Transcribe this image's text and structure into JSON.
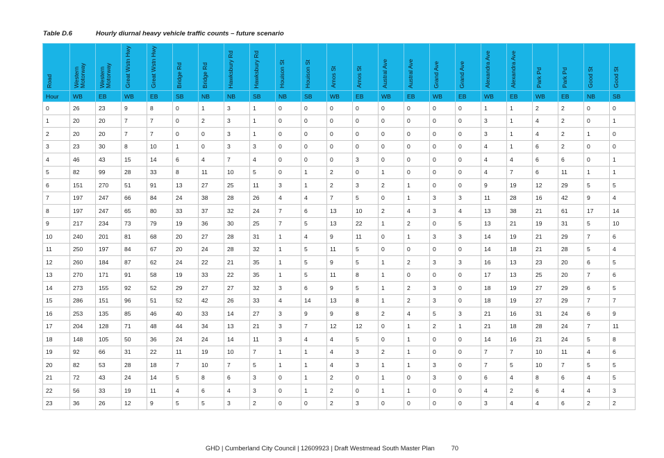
{
  "caption": {
    "number": "Table D.6",
    "title": "Hourly diurnal heavy vehicle traffic counts – future scenario"
  },
  "table": {
    "headers": [
      "Road",
      "Western Motorway",
      "Western Motorway",
      "Great Wstn Hwy",
      "Great Wstn Hwy",
      "Bridge Rd",
      "Bridge Rd",
      "Hawksbury Rd",
      "Hawksbury Rd",
      "Houison St",
      "Houison St",
      "Amos St",
      "Amos St",
      "Austral Ave",
      "Austral Ave",
      "Grand Ave",
      "Grand Ave",
      "Alexandra Ave",
      "Alexandra Ave",
      "Park Pd",
      "Park Pd",
      "Good St",
      "Good St"
    ],
    "directions": [
      "Hour",
      "WB",
      "EB",
      "WB",
      "EB",
      "SB",
      "NB",
      "NB",
      "SB",
      "NB",
      "SB",
      "WB",
      "EB",
      "WB",
      "EB",
      "WB",
      "EB",
      "WB",
      "EB",
      "WB",
      "EB",
      "NB",
      "SB"
    ],
    "rows": [
      [
        "0",
        "26",
        "23",
        "9",
        "8",
        "0",
        "1",
        "3",
        "1",
        "0",
        "0",
        "0",
        "0",
        "0",
        "0",
        "0",
        "0",
        "1",
        "1",
        "2",
        "2",
        "0",
        "0"
      ],
      [
        "1",
        "20",
        "20",
        "7",
        "7",
        "0",
        "2",
        "3",
        "1",
        "0",
        "0",
        "0",
        "0",
        "0",
        "0",
        "0",
        "0",
        "3",
        "1",
        "4",
        "2",
        "0",
        "1"
      ],
      [
        "2",
        "20",
        "20",
        "7",
        "7",
        "0",
        "0",
        "3",
        "1",
        "0",
        "0",
        "0",
        "0",
        "0",
        "0",
        "0",
        "0",
        "3",
        "1",
        "4",
        "2",
        "1",
        "0"
      ],
      [
        "3",
        "23",
        "30",
        "8",
        "10",
        "1",
        "0",
        "3",
        "3",
        "0",
        "0",
        "0",
        "0",
        "0",
        "0",
        "0",
        "0",
        "4",
        "1",
        "6",
        "2",
        "0",
        "0"
      ],
      [
        "4",
        "46",
        "43",
        "15",
        "14",
        "6",
        "4",
        "7",
        "4",
        "0",
        "0",
        "0",
        "3",
        "0",
        "0",
        "0",
        "0",
        "4",
        "4",
        "6",
        "6",
        "0",
        "1"
      ],
      [
        "5",
        "82",
        "99",
        "28",
        "33",
        "8",
        "11",
        "10",
        "5",
        "0",
        "1",
        "2",
        "0",
        "1",
        "0",
        "0",
        "0",
        "4",
        "7",
        "6",
        "11",
        "1",
        "1"
      ],
      [
        "6",
        "151",
        "270",
        "51",
        "91",
        "13",
        "27",
        "25",
        "11",
        "3",
        "1",
        "2",
        "3",
        "2",
        "1",
        "0",
        "0",
        "9",
        "19",
        "12",
        "29",
        "5",
        "5"
      ],
      [
        "7",
        "197",
        "247",
        "66",
        "84",
        "24",
        "38",
        "28",
        "26",
        "4",
        "4",
        "7",
        "5",
        "0",
        "1",
        "3",
        "3",
        "11",
        "28",
        "16",
        "42",
        "9",
        "4"
      ],
      [
        "8",
        "197",
        "247",
        "65",
        "80",
        "33",
        "37",
        "32",
        "24",
        "7",
        "6",
        "13",
        "10",
        "2",
        "4",
        "3",
        "4",
        "13",
        "38",
        "21",
        "61",
        "17",
        "14"
      ],
      [
        "9",
        "217",
        "234",
        "73",
        "79",
        "19",
        "36",
        "30",
        "25",
        "7",
        "5",
        "13",
        "22",
        "1",
        "2",
        "0",
        "5",
        "13",
        "21",
        "19",
        "31",
        "5",
        "10"
      ],
      [
        "10",
        "240",
        "201",
        "81",
        "68",
        "20",
        "27",
        "28",
        "31",
        "1",
        "4",
        "9",
        "11",
        "0",
        "1",
        "3",
        "3",
        "14",
        "19",
        "21",
        "29",
        "7",
        "6"
      ],
      [
        "11",
        "250",
        "197",
        "84",
        "67",
        "20",
        "24",
        "28",
        "32",
        "1",
        "5",
        "11",
        "5",
        "0",
        "0",
        "0",
        "0",
        "14",
        "18",
        "21",
        "28",
        "5",
        "4"
      ],
      [
        "12",
        "260",
        "184",
        "87",
        "62",
        "24",
        "22",
        "21",
        "35",
        "1",
        "5",
        "9",
        "5",
        "1",
        "2",
        "3",
        "3",
        "16",
        "13",
        "23",
        "20",
        "6",
        "5"
      ],
      [
        "13",
        "270",
        "171",
        "91",
        "58",
        "19",
        "33",
        "22",
        "35",
        "1",
        "5",
        "11",
        "8",
        "1",
        "0",
        "0",
        "0",
        "17",
        "13",
        "25",
        "20",
        "7",
        "6"
      ],
      [
        "14",
        "273",
        "155",
        "92",
        "52",
        "29",
        "27",
        "27",
        "32",
        "3",
        "6",
        "9",
        "5",
        "1",
        "2",
        "3",
        "0",
        "18",
        "19",
        "27",
        "29",
        "6",
        "5"
      ],
      [
        "15",
        "286",
        "151",
        "96",
        "51",
        "52",
        "42",
        "26",
        "33",
        "4",
        "14",
        "13",
        "8",
        "1",
        "2",
        "3",
        "0",
        "18",
        "19",
        "27",
        "29",
        "7",
        "7"
      ],
      [
        "16",
        "253",
        "135",
        "85",
        "46",
        "40",
        "33",
        "14",
        "27",
        "3",
        "9",
        "9",
        "8",
        "2",
        "4",
        "5",
        "3",
        "21",
        "16",
        "31",
        "24",
        "6",
        "9"
      ],
      [
        "17",
        "204",
        "128",
        "71",
        "48",
        "44",
        "34",
        "13",
        "21",
        "3",
        "7",
        "12",
        "12",
        "0",
        "1",
        "2",
        "1",
        "21",
        "18",
        "28",
        "24",
        "7",
        "11"
      ],
      [
        "18",
        "148",
        "105",
        "50",
        "36",
        "24",
        "24",
        "14",
        "11",
        "3",
        "4",
        "4",
        "5",
        "0",
        "1",
        "0",
        "0",
        "14",
        "16",
        "21",
        "24",
        "5",
        "8"
      ],
      [
        "19",
        "92",
        "66",
        "31",
        "22",
        "11",
        "19",
        "10",
        "7",
        "1",
        "1",
        "4",
        "3",
        "2",
        "1",
        "0",
        "0",
        "7",
        "7",
        "10",
        "11",
        "4",
        "6"
      ],
      [
        "20",
        "82",
        "53",
        "28",
        "18",
        "7",
        "10",
        "7",
        "5",
        "1",
        "1",
        "4",
        "3",
        "1",
        "1",
        "3",
        "0",
        "7",
        "5",
        "10",
        "7",
        "5",
        "5"
      ],
      [
        "21",
        "72",
        "43",
        "24",
        "14",
        "5",
        "8",
        "6",
        "3",
        "0",
        "1",
        "2",
        "0",
        "1",
        "0",
        "3",
        "0",
        "6",
        "4",
        "8",
        "6",
        "4",
        "5"
      ],
      [
        "22",
        "56",
        "33",
        "19",
        "11",
        "4",
        "6",
        "4",
        "3",
        "0",
        "1",
        "2",
        "0",
        "1",
        "1",
        "0",
        "0",
        "4",
        "2",
        "6",
        "4",
        "4",
        "3"
      ],
      [
        "23",
        "36",
        "26",
        "12",
        "9",
        "5",
        "5",
        "3",
        "2",
        "0",
        "0",
        "2",
        "3",
        "0",
        "0",
        "0",
        "0",
        "3",
        "4",
        "4",
        "6",
        "2",
        "2"
      ]
    ]
  },
  "footer": {
    "text": "GHD | Cumberland City Council | 12609923 | Draft Westmead South Master Plan",
    "page": "70"
  },
  "colors": {
    "header_bg": "#19b4e6",
    "grid_line": "#c8c8c8"
  }
}
